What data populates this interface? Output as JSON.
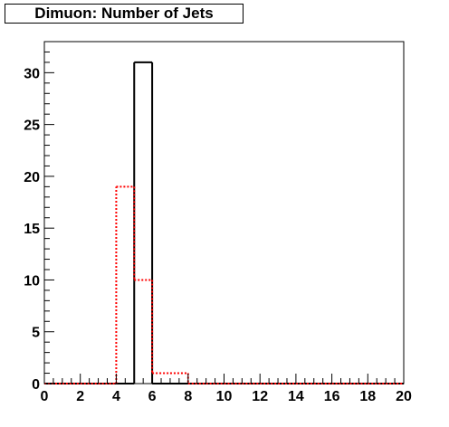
{
  "chart_data": {
    "type": "bar",
    "title": "Dimuon: Number of Jets",
    "xlim": [
      0,
      20
    ],
    "ylim": [
      0,
      33
    ],
    "x_ticks": [
      0,
      2,
      4,
      6,
      8,
      10,
      12,
      14,
      16,
      18,
      20
    ],
    "y_ticks": [
      0,
      5,
      10,
      15,
      20,
      25,
      30
    ],
    "grid": false,
    "series": [
      {
        "style": "solid",
        "color": "#000000",
        "bins": [
          [
            0,
            1,
            0
          ],
          [
            1,
            2,
            0
          ],
          [
            2,
            3,
            0
          ],
          [
            3,
            4,
            0
          ],
          [
            4,
            5,
            0
          ],
          [
            5,
            6,
            31
          ],
          [
            6,
            7,
            0
          ],
          [
            7,
            8,
            0
          ],
          [
            8,
            9,
            0
          ],
          [
            9,
            10,
            0
          ],
          [
            10,
            11,
            0
          ],
          [
            11,
            12,
            0
          ],
          [
            12,
            13,
            0
          ],
          [
            13,
            14,
            0
          ],
          [
            14,
            15,
            0
          ],
          [
            15,
            16,
            0
          ],
          [
            16,
            17,
            0
          ],
          [
            17,
            18,
            0
          ],
          [
            18,
            19,
            0
          ],
          [
            19,
            20,
            0
          ]
        ]
      },
      {
        "style": "dotted",
        "color": "#ff0000",
        "bins": [
          [
            0,
            1,
            0
          ],
          [
            1,
            2,
            0
          ],
          [
            2,
            3,
            0
          ],
          [
            3,
            4,
            0
          ],
          [
            4,
            5,
            19
          ],
          [
            5,
            6,
            10
          ],
          [
            6,
            7,
            1
          ],
          [
            7,
            8,
            1
          ],
          [
            8,
            9,
            0
          ],
          [
            9,
            10,
            0
          ],
          [
            10,
            11,
            0
          ],
          [
            11,
            12,
            0
          ],
          [
            12,
            13,
            0
          ],
          [
            13,
            14,
            0
          ],
          [
            14,
            15,
            0
          ],
          [
            15,
            16,
            0
          ],
          [
            16,
            17,
            0
          ],
          [
            17,
            18,
            0
          ],
          [
            18,
            19,
            0
          ],
          [
            19,
            20,
            0
          ]
        ]
      }
    ]
  }
}
